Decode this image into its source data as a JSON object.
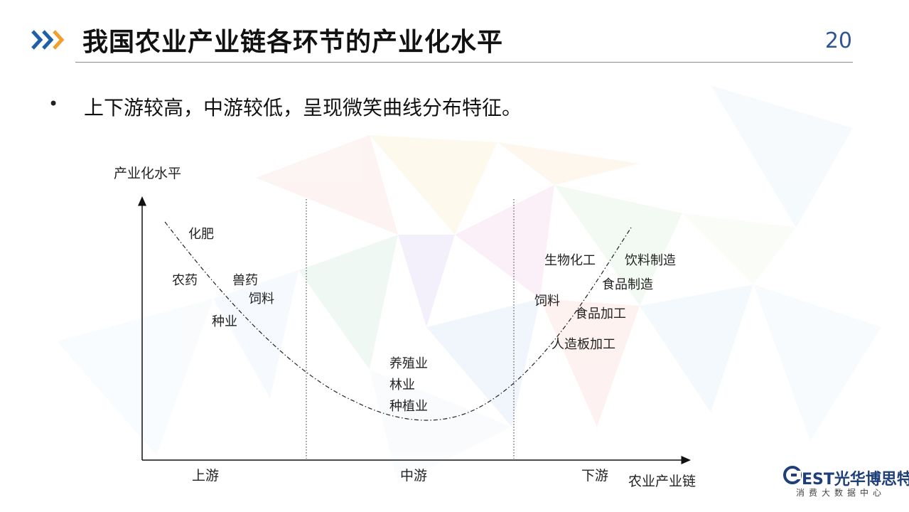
{
  "slide": {
    "title": "我国农业产业链各环节的产业化水平",
    "page_number": "20",
    "bullet": "上下游较高，中游较低，呈现微笑曲线分布特征。"
  },
  "diagram": {
    "y_axis_label": "产业化水平",
    "x_axis_label": "农业产业链",
    "segments": [
      "上游",
      "中游",
      "下游"
    ],
    "labels": {
      "upstream": [
        "化肥",
        "农药",
        "兽药",
        "饲料",
        "种业"
      ],
      "midstream": [
        "养殖业",
        "林业",
        "种植业"
      ],
      "downstream": [
        "生物化工",
        "饮料制造",
        "食品制造",
        "饲料",
        "食品加工",
        "人造板加工"
      ]
    }
  },
  "logo": {
    "brand": "EST光华博思特",
    "subtitle": "消费大数据中心"
  },
  "colors": {
    "accent_blue": "#1f5fa8",
    "accent_orange": "#f0a030",
    "page_number": "#2f5597"
  }
}
